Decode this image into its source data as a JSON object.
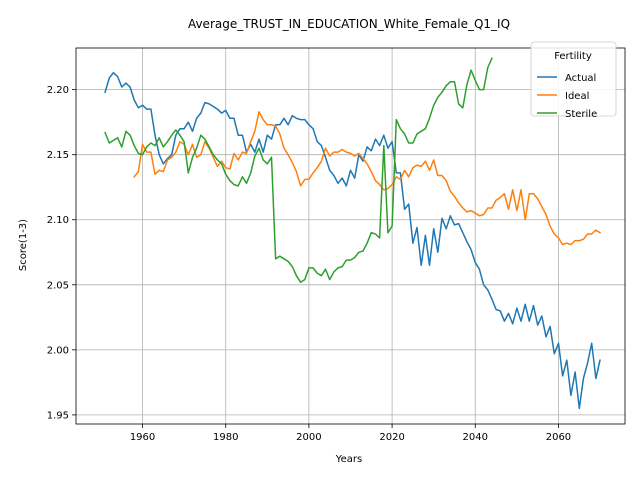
{
  "chart_data": {
    "type": "line",
    "title": "Average_TRUST_IN_EDUCATION_White_Female_Q1_IQ",
    "xlabel": "Years",
    "ylabel": "Score(1-3)",
    "xlim": [
      1944,
      2076
    ],
    "ylim": [
      1.943,
      2.232
    ],
    "xticks": [
      1960,
      1980,
      2000,
      2020,
      2040,
      2060
    ],
    "yticks": [
      1.95,
      2.0,
      2.05,
      2.1,
      2.15,
      2.2
    ],
    "ytick_labels": [
      "1.95",
      "2.00",
      "2.05",
      "2.10",
      "2.15",
      "2.20"
    ],
    "grid": true,
    "legend": {
      "title": "Fertility",
      "placement": "top-right"
    },
    "series": [
      {
        "name": "Actual",
        "color": "#1f77b4",
        "x": [
          1951,
          1952,
          1953,
          1954,
          1955,
          1956,
          1957,
          1958,
          1959,
          1960,
          1961,
          1962,
          1963,
          1964,
          1965,
          1966,
          1967,
          1968,
          1969,
          1970,
          1971,
          1972,
          1973,
          1974,
          1975,
          1976,
          1977,
          1978,
          1979,
          1980,
          1981,
          1982,
          1983,
          1984,
          1985,
          1986,
          1987,
          1988,
          1989,
          1990,
          1991,
          1992,
          1993,
          1994,
          1995,
          1996,
          1997,
          1998,
          1999,
          2000,
          2001,
          2002,
          2003,
          2004,
          2005,
          2006,
          2007,
          2008,
          2009,
          2010,
          2011,
          2012,
          2013,
          2014,
          2015,
          2016,
          2017,
          2018,
          2019,
          2020,
          2021,
          2022,
          2023,
          2024,
          2025,
          2026,
          2027,
          2028,
          2029,
          2030,
          2031,
          2032,
          2033,
          2034,
          2035,
          2036,
          2037,
          2038,
          2039,
          2040,
          2041,
          2042,
          2043,
          2044,
          2045,
          2046,
          2047,
          2048,
          2049,
          2050,
          2051,
          2052,
          2053,
          2054,
          2055,
          2056,
          2057,
          2058,
          2059,
          2060,
          2061,
          2062,
          2063,
          2064,
          2065,
          2066,
          2067,
          2068,
          2069,
          2070
        ],
        "values": [
          2.198,
          2.209,
          2.213,
          2.21,
          2.202,
          2.205,
          2.202,
          2.192,
          2.186,
          2.188,
          2.185,
          2.185,
          2.165,
          2.15,
          2.143,
          2.147,
          2.15,
          2.165,
          2.17,
          2.17,
          2.175,
          2.168,
          2.178,
          2.182,
          2.19,
          2.189,
          2.187,
          2.185,
          2.182,
          2.184,
          2.178,
          2.178,
          2.165,
          2.165,
          2.152,
          2.158,
          2.152,
          2.162,
          2.152,
          2.165,
          2.162,
          2.173,
          2.173,
          2.178,
          2.173,
          2.18,
          2.178,
          2.177,
          2.177,
          2.173,
          2.17,
          2.16,
          2.157,
          2.148,
          2.138,
          2.134,
          2.128,
          2.132,
          2.126,
          2.138,
          2.132,
          2.15,
          2.145,
          2.156,
          2.153,
          2.162,
          2.157,
          2.165,
          2.155,
          2.16,
          2.136,
          2.136,
          2.108,
          2.112,
          2.082,
          2.094,
          2.065,
          2.088,
          2.065,
          2.093,
          2.075,
          2.101,
          2.093,
          2.103,
          2.096,
          2.097,
          2.09,
          2.083,
          2.077,
          2.067,
          2.062,
          2.05,
          2.046,
          2.039,
          2.031,
          2.03,
          2.022,
          2.028,
          2.02,
          2.032,
          2.022,
          2.035,
          2.022,
          2.034,
          2.019,
          2.026,
          2.01,
          2.018,
          1.997,
          2.005,
          1.98,
          1.992,
          1.965,
          1.983,
          1.955,
          1.978,
          1.99,
          2.005,
          1.978,
          1.992
        ]
      },
      {
        "name": "Ideal",
        "color": "#ff7f0e",
        "x": [
          1958,
          1959,
          1960,
          1961,
          1962,
          1963,
          1964,
          1965,
          1966,
          1967,
          1968,
          1969,
          1970,
          1971,
          1972,
          1973,
          1974,
          1975,
          1976,
          1977,
          1978,
          1979,
          1980,
          1981,
          1982,
          1983,
          1984,
          1985,
          1986,
          1987,
          1988,
          1989,
          1990,
          1991,
          1992,
          1993,
          1994,
          1995,
          1996,
          1997,
          1998,
          1999,
          2000,
          2001,
          2002,
          2003,
          2004,
          2005,
          2006,
          2007,
          2008,
          2009,
          2010,
          2011,
          2012,
          2013,
          2014,
          2015,
          2016,
          2017,
          2018,
          2019,
          2020,
          2021,
          2022,
          2023,
          2024,
          2025,
          2026,
          2027,
          2028,
          2029,
          2030,
          2031,
          2032,
          2033,
          2034,
          2035,
          2036,
          2037,
          2038,
          2039,
          2040,
          2041,
          2042,
          2043,
          2044,
          2045,
          2046,
          2047,
          2048,
          2049,
          2050,
          2051,
          2052,
          2053,
          2054,
          2055,
          2056,
          2057,
          2058,
          2059,
          2060,
          2061,
          2062,
          2063,
          2064,
          2065,
          2066,
          2067,
          2068,
          2069,
          2070
        ],
        "values": [
          2.133,
          2.137,
          2.158,
          2.152,
          2.152,
          2.135,
          2.138,
          2.137,
          2.146,
          2.148,
          2.152,
          2.16,
          2.158,
          2.15,
          2.158,
          2.148,
          2.15,
          2.16,
          2.155,
          2.148,
          2.141,
          2.145,
          2.14,
          2.139,
          2.151,
          2.146,
          2.152,
          2.151,
          2.16,
          2.168,
          2.183,
          2.177,
          2.173,
          2.173,
          2.172,
          2.166,
          2.155,
          2.15,
          2.144,
          2.137,
          2.126,
          2.131,
          2.131,
          2.136,
          2.14,
          2.145,
          2.155,
          2.149,
          2.152,
          2.152,
          2.154,
          2.152,
          2.151,
          2.149,
          2.151,
          2.147,
          2.143,
          2.137,
          2.13,
          2.127,
          2.123,
          2.124,
          2.127,
          2.133,
          2.131,
          2.138,
          2.133,
          2.14,
          2.142,
          2.141,
          2.145,
          2.138,
          2.146,
          2.134,
          2.134,
          2.13,
          2.122,
          2.118,
          2.113,
          2.109,
          2.106,
          2.107,
          2.105,
          2.103,
          2.104,
          2.109,
          2.109,
          2.115,
          2.117,
          2.12,
          2.108,
          2.123,
          2.107,
          2.123,
          2.1,
          2.12,
          2.12,
          2.116,
          2.11,
          2.104,
          2.095,
          2.089,
          2.086,
          2.081,
          2.082,
          2.081,
          2.084,
          2.084,
          2.085,
          2.089,
          2.089,
          2.092,
          2.09
        ]
      },
      {
        "name": "Sterile",
        "color": "#2ca02c",
        "x": [
          1951,
          1952,
          1953,
          1954,
          1955,
          1956,
          1957,
          1958,
          1959,
          1960,
          1961,
          1962,
          1963,
          1964,
          1965,
          1966,
          1967,
          1968,
          1969,
          1970,
          1971,
          1972,
          1973,
          1974,
          1975,
          1976,
          1977,
          1978,
          1979,
          1980,
          1981,
          1982,
          1983,
          1984,
          1985,
          1986,
          1987,
          1988,
          1989,
          1990,
          1991,
          1992,
          1993,
          1994,
          1995,
          1996,
          1997,
          1998,
          1999,
          2000,
          2001,
          2002,
          2003,
          2004,
          2005,
          2006,
          2007,
          2008,
          2009,
          2010,
          2011,
          2012,
          2013,
          2014,
          2015,
          2016,
          2017,
          2018,
          2019,
          2020,
          2021,
          2022,
          2023,
          2024,
          2025,
          2026,
          2027,
          2028,
          2029,
          2030,
          2031,
          2032,
          2033,
          2034,
          2035,
          2036,
          2037,
          2038,
          2039,
          2040,
          2041,
          2042,
          2043,
          2044
        ],
        "values": [
          2.167,
          2.159,
          2.161,
          2.163,
          2.156,
          2.168,
          2.165,
          2.157,
          2.151,
          2.15,
          2.156,
          2.159,
          2.157,
          2.163,
          2.156,
          2.16,
          2.165,
          2.169,
          2.165,
          2.16,
          2.136,
          2.148,
          2.155,
          2.165,
          2.162,
          2.156,
          2.15,
          2.146,
          2.143,
          2.135,
          2.13,
          2.127,
          2.126,
          2.133,
          2.128,
          2.136,
          2.149,
          2.155,
          2.146,
          2.143,
          2.148,
          2.07,
          2.072,
          2.07,
          2.068,
          2.064,
          2.057,
          2.052,
          2.054,
          2.063,
          2.063,
          2.059,
          2.057,
          2.062,
          2.054,
          2.06,
          2.063,
          2.064,
          2.069,
          2.069,
          2.071,
          2.075,
          2.076,
          2.082,
          2.09,
          2.089,
          2.086,
          2.157,
          2.09,
          2.095,
          2.177,
          2.17,
          2.166,
          2.159,
          2.159,
          2.166,
          2.168,
          2.17,
          2.178,
          2.188,
          2.194,
          2.198,
          2.203,
          2.206,
          2.206,
          2.189,
          2.186,
          2.204,
          2.215,
          2.207,
          2.2,
          2.2,
          2.217,
          2.224
        ]
      }
    ]
  }
}
